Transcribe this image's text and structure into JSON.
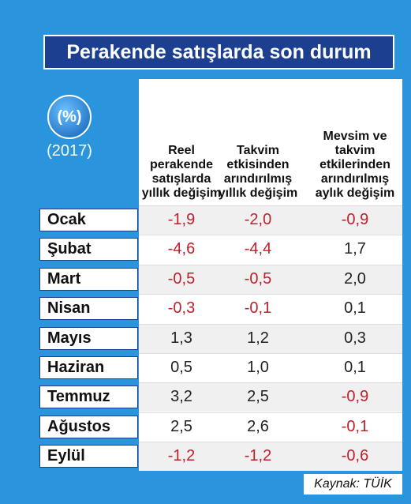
{
  "title": "Perakende satışlarda son durum",
  "unit_badge": "(%)",
  "year": "(2017)",
  "table": {
    "columns": [
      "Reel perakende satışlarda yıllık değişim",
      "Takvim etkisinden arındırılmış yıllık değişim",
      "Mevsim ve takvim etkilerinden arındırılmış aylık değişim"
    ],
    "rows": [
      [
        "Ocak",
        "-1,9",
        "-2,0",
        "-0,9"
      ],
      [
        "Şubat",
        "-4,6",
        "-4,4",
        "1,7"
      ],
      [
        "Mart",
        "-0,5",
        "-0,5",
        "2,0"
      ],
      [
        "Nisan",
        "-0,3",
        "-0,1",
        "0,1"
      ],
      [
        "Mayıs",
        "1,3",
        "1,2",
        "0,3"
      ],
      [
        "Haziran",
        "0,5",
        "1,0",
        "0,1"
      ],
      [
        "Temmuz",
        "3,2",
        "2,5",
        "-0,9"
      ],
      [
        "Ağustos",
        "2,5",
        "2,6",
        "-0,1"
      ],
      [
        "Eylül",
        "-1,2",
        "-1,2",
        "-0,6"
      ]
    ]
  },
  "source": "Kaynak: TÜİK"
}
